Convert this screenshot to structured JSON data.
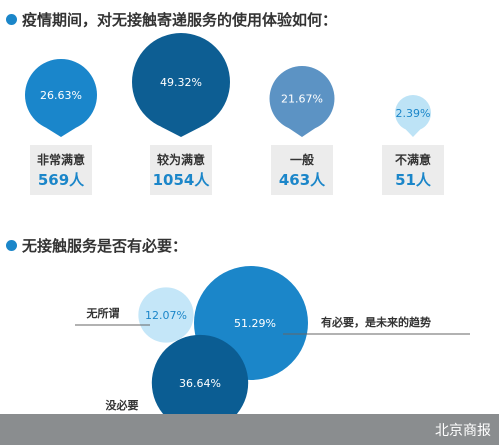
{
  "questions": {
    "q1": "疫情期间，对无接触寄递服务的使用体验如何：",
    "q2": "无接触服务是否有必要："
  },
  "colors": {
    "dot": "#1b86c9",
    "count_text": "#1b86c9",
    "card_bg": "#ececec",
    "bubble_colors": [
      "#1a86cb",
      "#0d5e93",
      "#5c93c4",
      "#bde3f6"
    ],
    "pct_text_dark": "#ffffff",
    "pct_text_light": "#1b86c9",
    "necessity_colors": [
      "#1b86c9",
      "#0b5d93",
      "#c4e6f8"
    ],
    "footer_bg": "#8a8d8f"
  },
  "chart_data": [
    {
      "type": "bubble",
      "title": "疫情期间，对无接触寄递服务的使用体验如何：",
      "categories": [
        "非常满意",
        "较为满意",
        "一般",
        "不满意"
      ],
      "percentages": [
        "26.63%",
        "49.32%",
        "21.67%",
        "2.39%"
      ],
      "values": [
        26.63,
        49.32,
        21.67,
        2.39
      ],
      "counts": [
        "569人",
        "1054人",
        "463人",
        "51人"
      ]
    },
    {
      "type": "bubble",
      "title": "无接触服务是否有必要：",
      "series": [
        {
          "name": "有必要，是未来的趋势",
          "label": "51.29%",
          "value": 51.29
        },
        {
          "name": "没必要",
          "label": "36.64%",
          "value": 36.64
        },
        {
          "name": "无所谓",
          "label": "12.07%",
          "value": 12.07
        }
      ]
    }
  ],
  "footer": {
    "source": "北京商报"
  }
}
